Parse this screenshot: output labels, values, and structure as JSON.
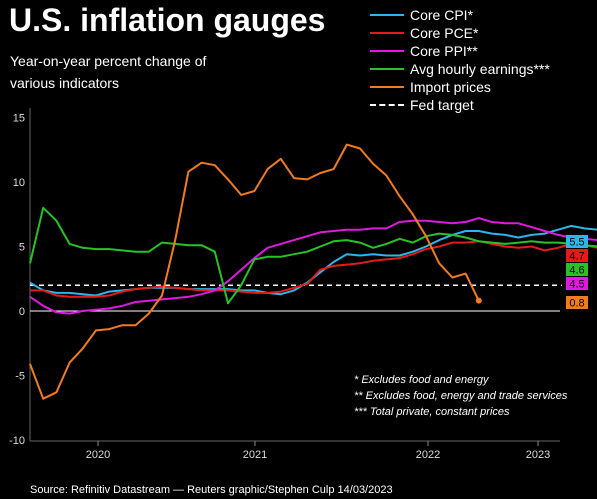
{
  "title": "U.S. inflation gauges",
  "subtitle": "Year-on-year percent change of various indicators",
  "source": "Source: Refinitiv Datastream — Reuters graphic/Stephen Culp 14/03/2023",
  "notes": [
    "* Excludes food and energy",
    "** Excludes food, energy and trade services",
    "*** Total private, constant prices"
  ],
  "legend": [
    {
      "name": "Core CPI*",
      "color": "#2bb7e8"
    },
    {
      "name": "Core PCE*",
      "color": "#e31b1b"
    },
    {
      "name": "Core PPI**",
      "color": "#e019e0"
    },
    {
      "name": "Avg hourly earnings***",
      "color": "#27c227"
    },
    {
      "name": "Import prices",
      "color": "#f07c1f"
    },
    {
      "name": "Fed target",
      "color": "#ffffff",
      "dashed": true
    }
  ],
  "chart_data": {
    "type": "line",
    "x_start": "2019-07",
    "x_labels": [
      "2020",
      "2021",
      "2022",
      "2023"
    ],
    "ylim": [
      -10,
      15
    ],
    "yticks": [
      -10,
      -5,
      0,
      5,
      10,
      15
    ],
    "grid": false,
    "reference_line": {
      "name": "Fed target",
      "value": 2
    },
    "series": [
      {
        "name": "Core CPI*",
        "color": "#2bb7e8",
        "end_label": "5.5",
        "values": [
          2.2,
          1.6,
          1.4,
          1.4,
          1.3,
          1.2,
          1.5,
          1.6,
          1.7,
          1.8,
          1.8,
          1.8,
          1.7,
          1.7,
          1.7,
          1.7,
          1.6,
          1.6,
          1.4,
          1.3,
          1.6,
          2.2,
          3.0,
          3.8,
          4.4,
          4.3,
          4.4,
          4.3,
          4.3,
          4.6,
          5.0,
          5.5,
          5.9,
          6.2,
          6.2,
          6.0,
          5.9,
          5.7,
          5.9,
          6.0,
          6.3,
          6.6,
          6.4,
          6.3,
          6.0,
          5.7,
          5.7,
          5.6,
          5.6,
          5.5
        ]
      },
      {
        "name": "Core PCE*",
        "color": "#e31b1b",
        "end_label": "4.7",
        "values": [
          1.6,
          1.6,
          1.2,
          1.1,
          1.1,
          1.1,
          1.2,
          1.5,
          1.7,
          1.8,
          1.9,
          1.8,
          1.7,
          1.6,
          1.6,
          1.6,
          1.5,
          1.4,
          1.4,
          1.5,
          1.8,
          2.1,
          3.2,
          3.5,
          3.6,
          3.7,
          3.9,
          4.0,
          4.1,
          4.4,
          4.8,
          5.0,
          5.3,
          5.3,
          5.4,
          5.2,
          5.0,
          4.9,
          5.0,
          4.7,
          4.9,
          5.2,
          5.1,
          4.9,
          4.7,
          4.6,
          4.7,
          4.6,
          4.5,
          4.7
        ]
      },
      {
        "name": "Core PPI**",
        "color": "#e019e0",
        "end_label": "4.5",
        "values": [
          1.1,
          0.4,
          -0.1,
          -0.2,
          0.0,
          0.1,
          0.2,
          0.4,
          0.7,
          0.8,
          0.9,
          1.0,
          1.1,
          1.3,
          1.6,
          2.3,
          3.2,
          4.1,
          4.9,
          5.2,
          5.5,
          5.8,
          6.1,
          6.2,
          6.3,
          6.3,
          6.4,
          6.4,
          6.9,
          7.0,
          7.0,
          6.9,
          6.8,
          6.9,
          7.2,
          6.9,
          6.8,
          6.8,
          6.5,
          6.2,
          5.9,
          5.7,
          5.6,
          5.5,
          5.2,
          5.0,
          4.7,
          4.6,
          4.5,
          4.5
        ]
      },
      {
        "name": "Avg hourly earnings***",
        "color": "#27c227",
        "end_label": "4.6",
        "values": [
          3.7,
          8.0,
          7.0,
          5.2,
          4.9,
          4.8,
          4.8,
          4.7,
          4.6,
          4.6,
          5.3,
          5.2,
          5.1,
          5.1,
          4.6,
          0.6,
          2.0,
          4.0,
          4.2,
          4.2,
          4.4,
          4.6,
          5.0,
          5.4,
          5.5,
          5.3,
          4.9,
          5.2,
          5.6,
          5.3,
          5.8,
          6.0,
          5.9,
          5.7,
          5.4,
          5.3,
          5.2,
          5.3,
          5.4,
          5.3,
          5.3,
          5.2,
          5.1,
          5.0,
          5.1,
          4.9,
          4.8,
          4.6,
          4.5,
          4.6
        ]
      },
      {
        "name": "Import prices",
        "color": "#f07c1f",
        "end_label": "0.8",
        "values": [
          -4.1,
          -6.8,
          -6.3,
          -4.0,
          -2.9,
          -1.5,
          -1.4,
          -1.1,
          -1.1,
          -0.2,
          1.2,
          5.5,
          10.8,
          11.5,
          11.3,
          10.2,
          9.0,
          9.3,
          11.0,
          11.8,
          10.3,
          10.2,
          10.7,
          11.0,
          12.9,
          12.6,
          11.4,
          10.5,
          8.9,
          7.5,
          5.8,
          3.7,
          2.6,
          2.9,
          0.8
        ]
      }
    ]
  }
}
